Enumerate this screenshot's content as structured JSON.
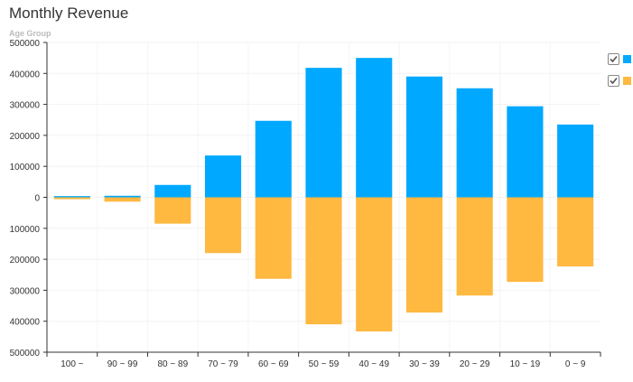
{
  "title": "Monthly Revenue",
  "chart_data": {
    "type": "bar",
    "title": "Monthly Revenue",
    "ylabel": "Age Group",
    "xlabel": "",
    "categories": [
      "100 ~",
      "90 ~ 99",
      "80 ~ 89",
      "70 ~ 79",
      "60 ~ 69",
      "50 ~ 59",
      "40 ~ 49",
      "30 ~ 39",
      "20 ~ 29",
      "10 ~ 19",
      "0 ~ 9"
    ],
    "series": [
      {
        "color": "#00a9ff",
        "values": [
          4000,
          5000,
          40000,
          135000,
          247000,
          418000,
          450000,
          390000,
          352000,
          294000,
          235000
        ]
      },
      {
        "color": "#ffb840",
        "values": [
          -6000,
          -14000,
          -85000,
          -180000,
          -263000,
          -410000,
          -433000,
          -372000,
          -317000,
          -273000,
          -223000
        ]
      }
    ],
    "ylim": [
      -500000,
      500000
    ],
    "yticks": [
      500000,
      400000,
      300000,
      200000,
      100000,
      0,
      100000,
      200000,
      300000,
      400000,
      500000
    ],
    "stacked": true,
    "grid": true,
    "legend": "right",
    "legend_checked": [
      true,
      true
    ]
  }
}
